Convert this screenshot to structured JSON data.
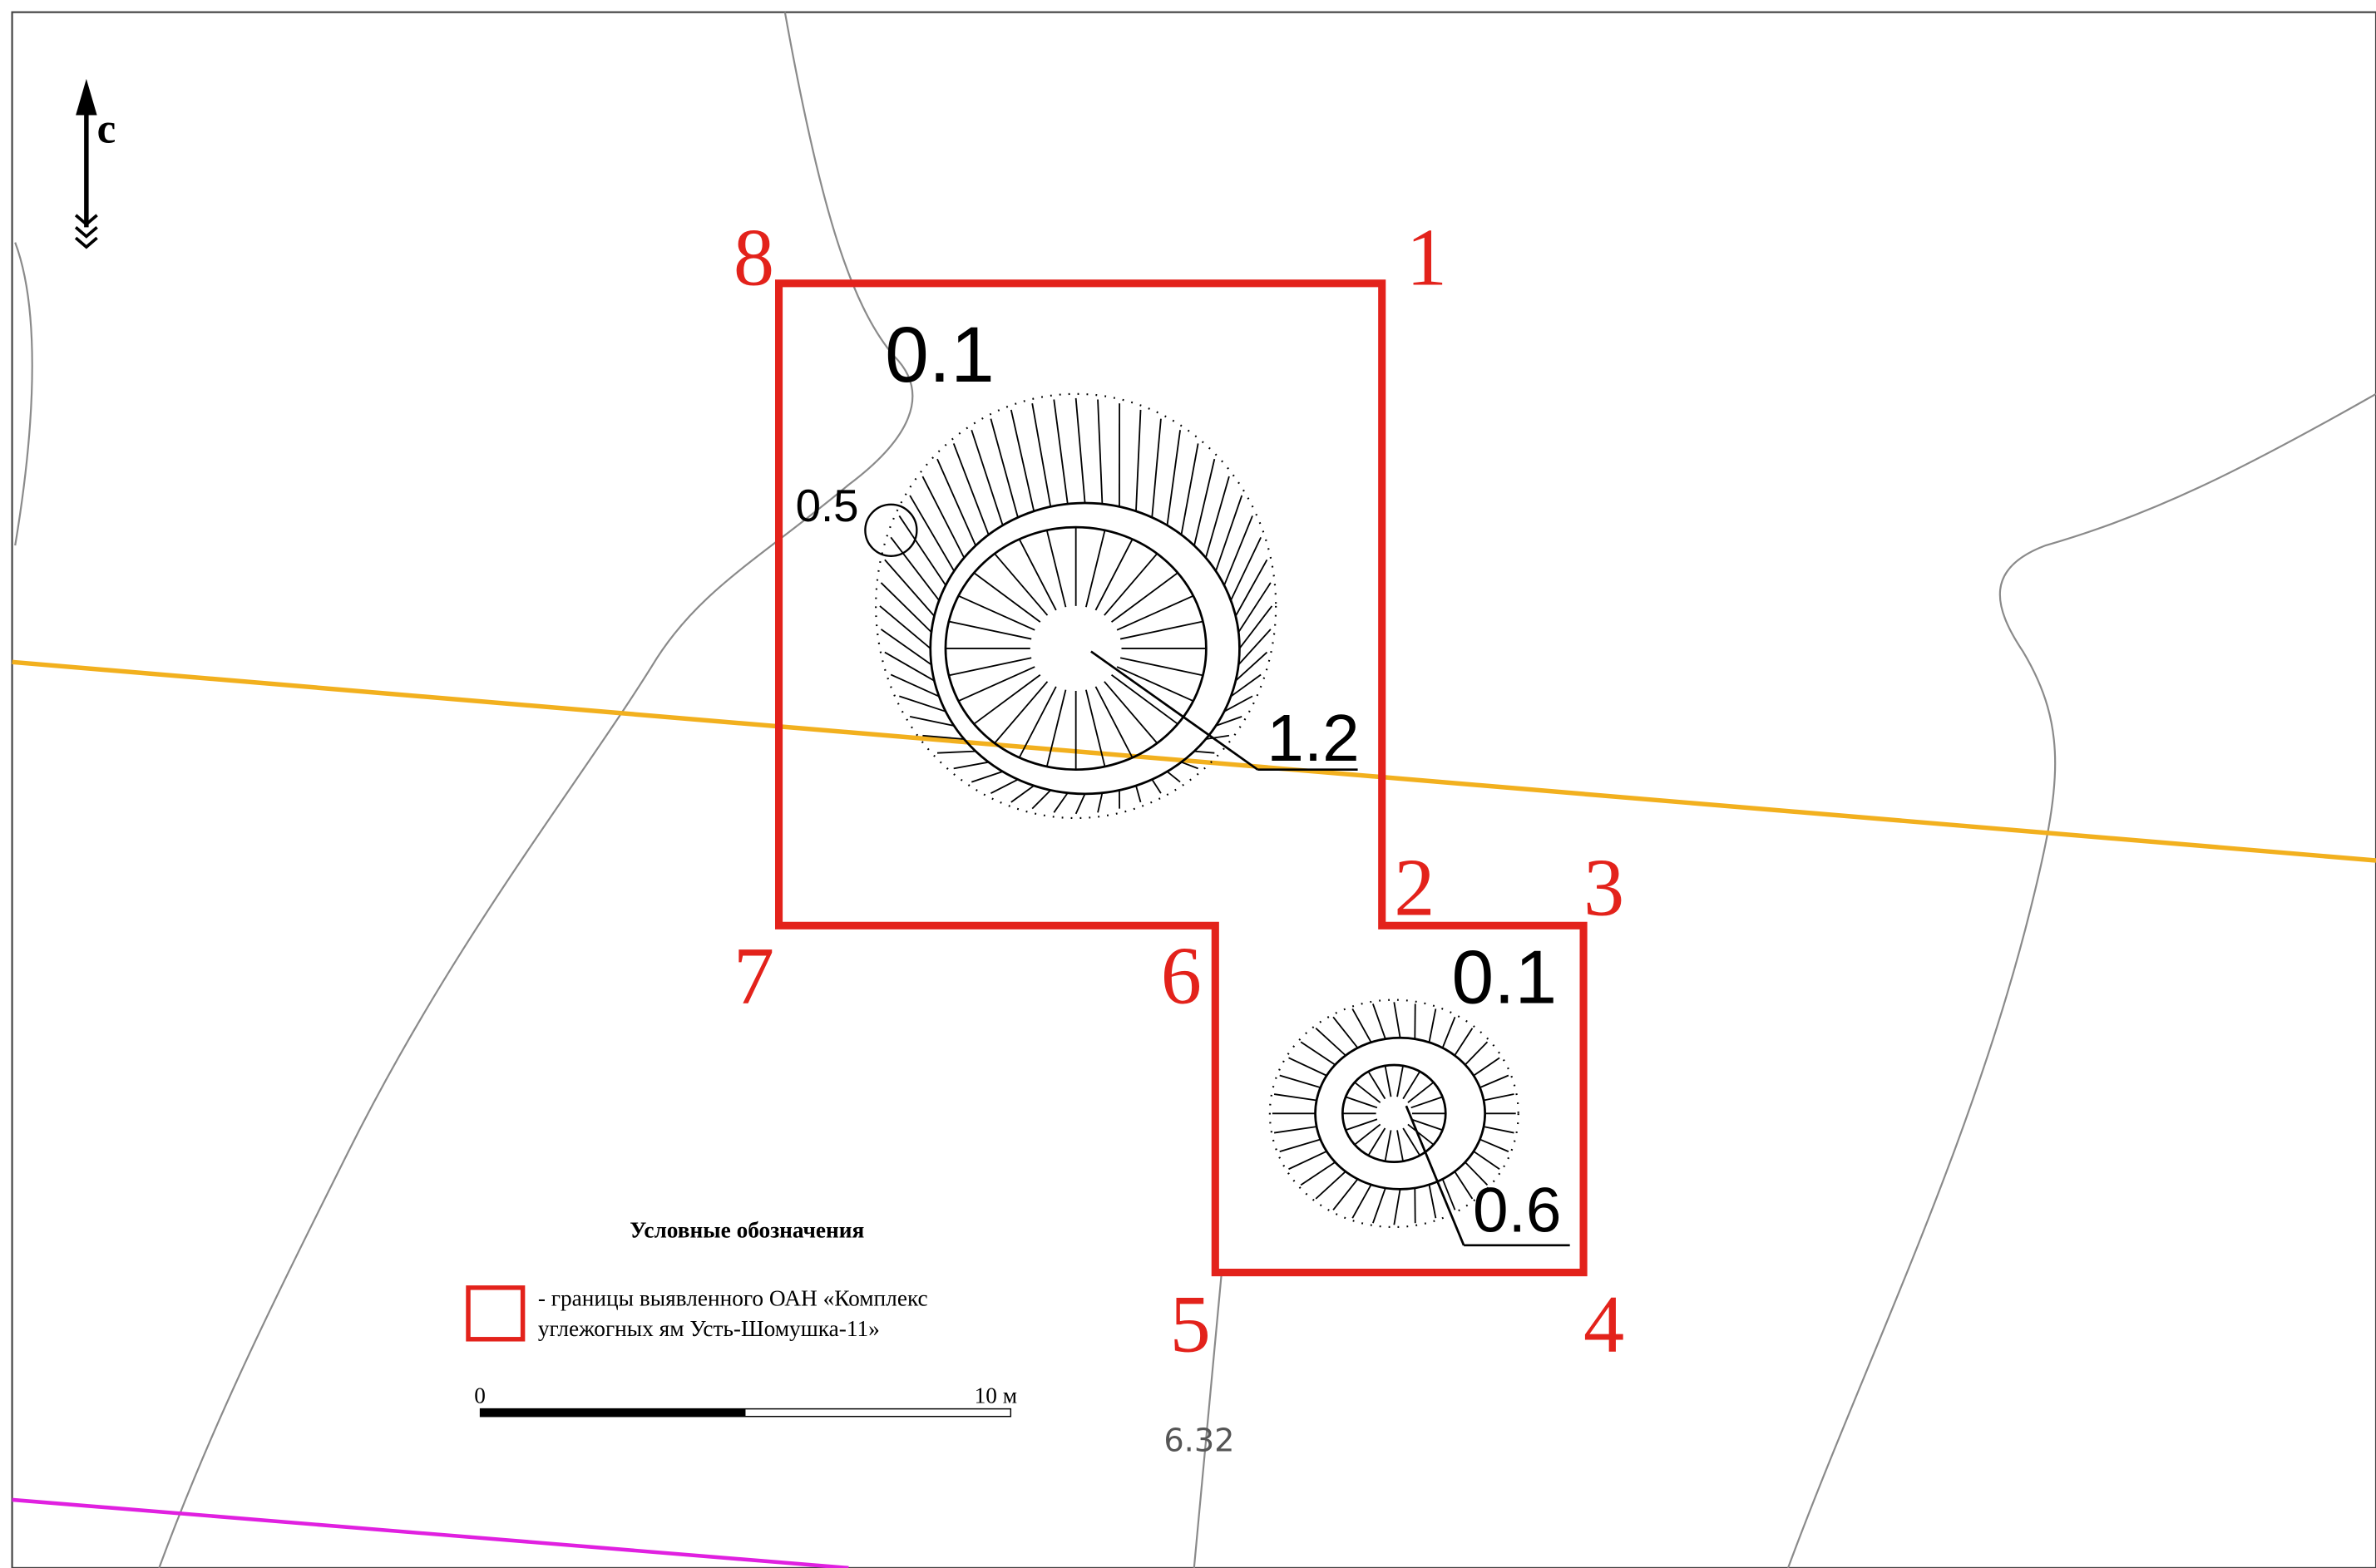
{
  "north_label": "с",
  "boundary_points": [
    "1",
    "2",
    "3",
    "4",
    "5",
    "6",
    "7",
    "8"
  ],
  "depths": {
    "pit1_top": "0.1",
    "small_pit": "0.5",
    "pit1_bottom": "1.2",
    "pit2_top": "0.1",
    "pit2_bottom": "0.6"
  },
  "legend": {
    "title": "Условные обозначения",
    "line1": "- границы выявленного ОАН «Комплекс",
    "line2": "углежогных ям Усть-Шомушка-11»"
  },
  "scale": {
    "start": "0",
    "end": "10 м"
  },
  "elevation": "6.32"
}
